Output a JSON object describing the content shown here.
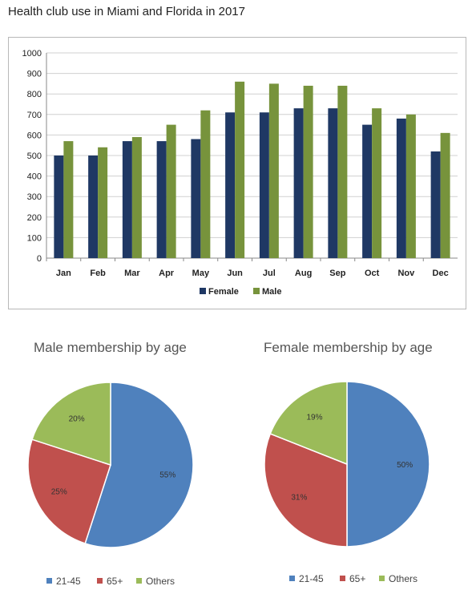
{
  "title": "Health club use in Miami and Florida in 2017",
  "chart_data": [
    {
      "type": "bar",
      "categories": [
        "Jan",
        "Feb",
        "Mar",
        "Apr",
        "May",
        "Jun",
        "Jul",
        "Aug",
        "Sep",
        "Oct",
        "Nov",
        "Dec"
      ],
      "series": [
        {
          "name": "Female",
          "color": "#1f3864",
          "values": [
            500,
            500,
            570,
            570,
            580,
            710,
            710,
            730,
            730,
            650,
            680,
            520
          ]
        },
        {
          "name": "Male",
          "color": "#77933c",
          "values": [
            570,
            540,
            590,
            650,
            720,
            860,
            850,
            840,
            840,
            730,
            700,
            610
          ]
        }
      ],
      "ylim": [
        0,
        1000
      ],
      "yticks": [
        0,
        100,
        200,
        300,
        400,
        500,
        600,
        700,
        800,
        900,
        1000
      ],
      "grid": true,
      "legend": "bottom"
    },
    {
      "type": "pie",
      "title": "Male membership by age",
      "slices": [
        {
          "label": "21-45",
          "value": 55,
          "display": "55%",
          "color": "#4f81bd"
        },
        {
          "label": "65+",
          "value": 25,
          "display": "25%",
          "color": "#c0504d"
        },
        {
          "label": "Others",
          "value": 20,
          "display": "20%",
          "color": "#9bbb59"
        }
      ],
      "legend": "bottom"
    },
    {
      "type": "pie",
      "title": "Female membership by age",
      "slices": [
        {
          "label": "21-45",
          "value": 50,
          "display": "50%",
          "color": "#4f81bd"
        },
        {
          "label": "65+",
          "value": 31,
          "display": "31%",
          "color": "#c0504d"
        },
        {
          "label": "Others",
          "value": 19,
          "display": "19%",
          "color": "#9bbb59"
        }
      ],
      "legend": "bottom"
    }
  ]
}
